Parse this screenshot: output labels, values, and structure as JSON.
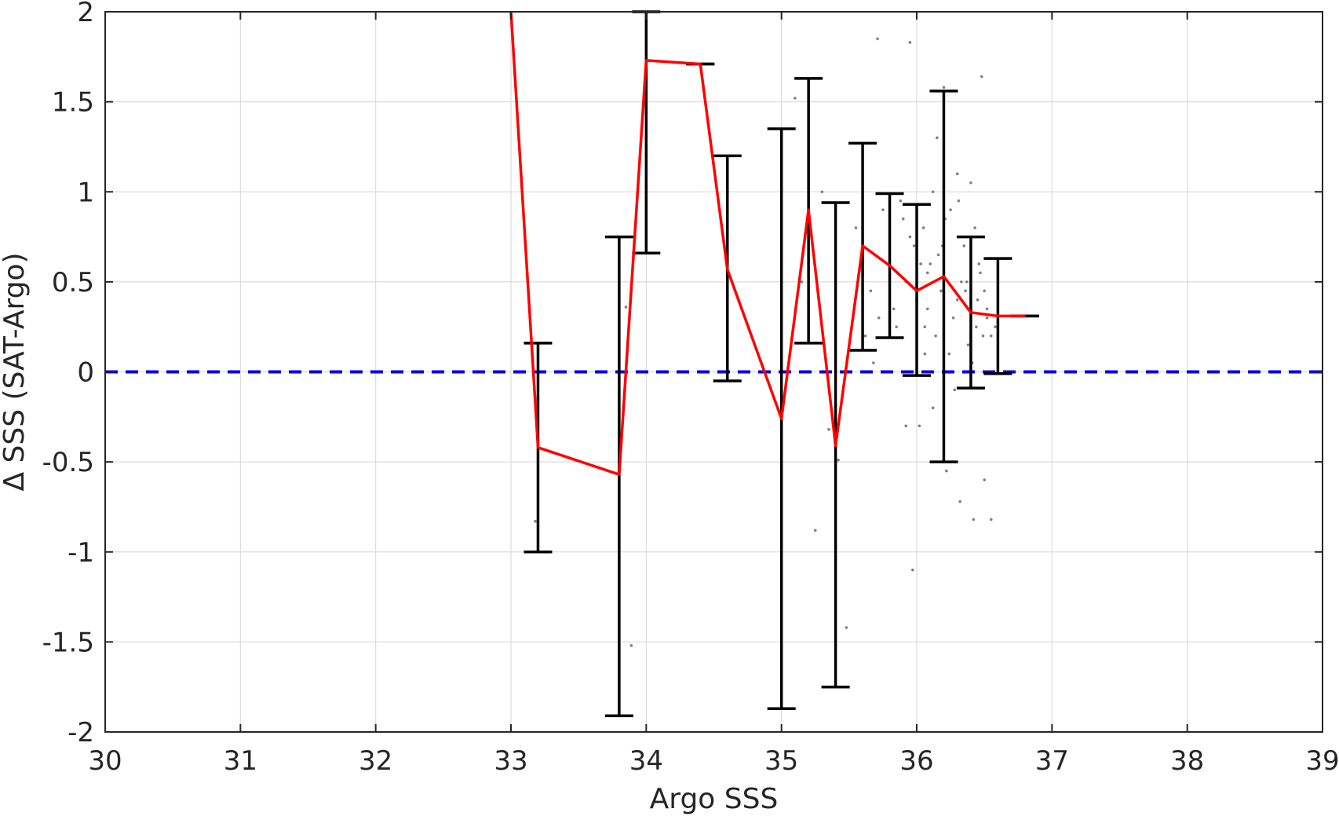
{
  "chart_data": {
    "type": "scatter",
    "title": "",
    "xlabel": "Argo SSS",
    "ylabel": "Δ SSS (SAT-Argo)",
    "xlim": [
      30,
      39
    ],
    "ylim": [
      -2,
      2
    ],
    "xticks": [
      30,
      31,
      32,
      33,
      34,
      35,
      36,
      37,
      38,
      39
    ],
    "yticks": [
      -2,
      -1.5,
      -1,
      -0.5,
      0,
      0.5,
      1,
      1.5,
      2
    ],
    "xtick_labels": [
      "30",
      "31",
      "32",
      "33",
      "34",
      "35",
      "36",
      "37",
      "38",
      "39"
    ],
    "ytick_labels": [
      "-2",
      "-1.5",
      "-1",
      "-0.5",
      "0",
      "0.5",
      "1",
      "1.5",
      "2"
    ],
    "grid": true,
    "legend": "none",
    "reference_line": {
      "y": 0,
      "style": "dashed",
      "color": "#0000e6"
    },
    "colors": {
      "scatter": "#808080",
      "mean_line": "#ff0000",
      "error_bars": "#000000"
    },
    "series": [
      {
        "type": "line",
        "x": [
          33.0,
          33.2,
          33.8,
          34.0,
          34.4,
          34.6,
          35.0,
          35.2,
          35.4,
          35.6,
          35.8,
          36.0,
          36.2,
          36.4,
          36.6,
          36.8
        ],
        "y": [
          2.0,
          -0.42,
          -0.57,
          1.73,
          1.71,
          0.57,
          -0.26,
          0.9,
          -0.41,
          0.7,
          0.59,
          0.45,
          0.53,
          0.33,
          0.31,
          0.31
        ]
      },
      {
        "type": "errorbar",
        "bars": [
          {
            "x": 33.2,
            "low": -1.0,
            "high": 0.16
          },
          {
            "x": 33.8,
            "low": -1.91,
            "high": 0.75
          },
          {
            "x": 34.0,
            "low": 0.66,
            "high": 2.0
          },
          {
            "x": 34.4,
            "low": 1.71,
            "high": 1.71
          },
          {
            "x": 34.6,
            "low": -0.05,
            "high": 1.2
          },
          {
            "x": 35.0,
            "low": -1.87,
            "high": 1.35
          },
          {
            "x": 35.2,
            "low": 0.16,
            "high": 1.63
          },
          {
            "x": 35.4,
            "low": -1.75,
            "high": 0.94
          },
          {
            "x": 35.6,
            "low": 0.12,
            "high": 1.27
          },
          {
            "x": 35.8,
            "low": 0.19,
            "high": 0.99
          },
          {
            "x": 36.0,
            "low": -0.02,
            "high": 0.93
          },
          {
            "x": 36.2,
            "low": -0.5,
            "high": 1.56
          },
          {
            "x": 36.4,
            "low": -0.09,
            "high": 0.75
          },
          {
            "x": 36.6,
            "low": -0.01,
            "high": 0.63
          },
          {
            "x": 36.8,
            "low": 0.31,
            "high": 0.31
          }
        ]
      },
      {
        "type": "scatter",
        "x": [
          33.18,
          33.85,
          33.89,
          35.0,
          35.1,
          35.15,
          35.2,
          35.25,
          35.3,
          35.35,
          35.42,
          35.48,
          35.55,
          35.62,
          35.68,
          35.72,
          35.75,
          35.8,
          35.85,
          35.88,
          35.92,
          35.95,
          35.97,
          35.98,
          36.0,
          36.02,
          36.05,
          36.06,
          36.08,
          36.1,
          36.12,
          36.14,
          36.15,
          36.18,
          36.2,
          36.22,
          36.25,
          36.27,
          36.3,
          36.32,
          36.35,
          36.37,
          36.4,
          36.42,
          36.45,
          36.48,
          36.5,
          36.52,
          36.55,
          36.58,
          35.71,
          36.49,
          36.4,
          36.5,
          35.95,
          36.12,
          36.3,
          36.38,
          36.43,
          35.92,
          36.08,
          36.16,
          36.24,
          36.33,
          36.44,
          36.52,
          35.83,
          36.03,
          36.21,
          36.28,
          36.36,
          36.47,
          36.55,
          35.66,
          35.9,
          36.06,
          36.19,
          36.31,
          36.41,
          36.46
        ],
        "y": [
          -0.83,
          0.36,
          -1.52,
          -0.86,
          1.52,
          0.5,
          1.2,
          -0.88,
          1.0,
          -0.32,
          -0.49,
          -1.42,
          0.8,
          0.2,
          0.05,
          0.3,
          0.9,
          0.6,
          0.25,
          0.95,
          -0.3,
          1.83,
          -1.1,
          0.7,
          0.4,
          -0.3,
          0.8,
          0.1,
          0.55,
          0.6,
          1.0,
          0.2,
          1.3,
          0.45,
          1.58,
          -0.55,
          0.9,
          0.3,
          1.1,
          -0.72,
          0.7,
          0.5,
          1.05,
          -0.82,
          0.4,
          1.64,
          -0.6,
          0.35,
          -0.82,
          0.25,
          1.85,
          0.2,
          0.6,
          0.45,
          0.75,
          -0.2,
          0.4,
          0.15,
          0.8,
          0.5,
          0.35,
          0.65,
          0.1,
          0.5,
          0.25,
          0.3,
          0.35,
          0.6,
          0.85,
          -0.1,
          0.45,
          0.55,
          0.2,
          0.45,
          0.85,
          0.25,
          0.7,
          0.95,
          0.05,
          0.6
        ]
      }
    ]
  }
}
